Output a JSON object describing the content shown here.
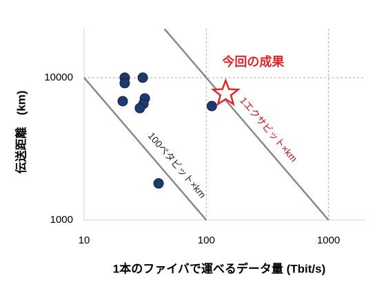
{
  "chart_data": {
    "type": "scatter",
    "x_label": "1本のファイバで運べるデータ量 (Tbit/s)",
    "y_label": "伝送距離　(km)",
    "xlog": true,
    "ylog": true,
    "xlim": [
      10,
      2000
    ],
    "ylim": [
      1000,
      22000
    ],
    "xticks": [
      10,
      100,
      1000
    ],
    "yticks": [
      1000,
      10000
    ],
    "grid": true,
    "series": [
      {
        "color": "#1f3a6e",
        "x": [
          21.5,
          21.5,
          30.2,
          20.7,
          31.4,
          30.6,
          28.6,
          111,
          40.7
        ],
        "y": [
          10000,
          9150,
          10000,
          6840,
          7150,
          6550,
          6110,
          6320,
          1810
        ]
      }
    ],
    "highlight": {
      "x": 144,
      "y": 7730,
      "label": "今回の成果",
      "color": "#e0262b"
    },
    "reference_lines": [
      {
        "product": 100000,
        "label": "100ペタビット×km",
        "color": "#222222"
      },
      {
        "product": 1000000,
        "label": "1エクサビット×km",
        "color": "#c0141b"
      }
    ]
  }
}
